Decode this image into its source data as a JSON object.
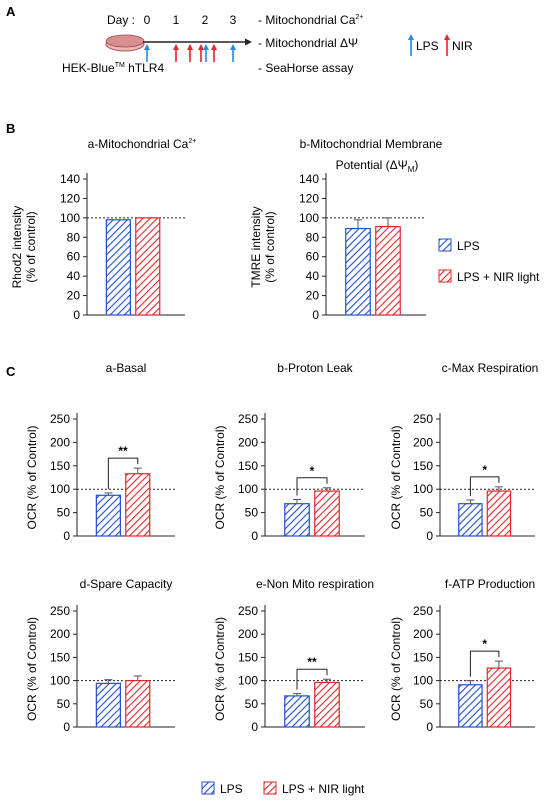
{
  "panel_labels": {
    "a": "A",
    "b": "B",
    "c": "C"
  },
  "timeline": {
    "day_label": "Day :",
    "days": [
      "0",
      "1",
      "2",
      "3"
    ],
    "cell_line": {
      "prefix": "HEK-Blue",
      "superscript": "TM",
      "suffix": " hTLR4"
    },
    "assays": [
      {
        "text": "- Mitochondrial Ca",
        "sup": "2+",
        "sub": ""
      },
      {
        "text": "- Mitochondrial ΔΨ",
        "sup": "",
        "sub": ""
      },
      {
        "text": "- SeaHorse assay",
        "sup": "",
        "sub": ""
      }
    ],
    "legend": {
      "lps": "LPS",
      "nir": "NIR"
    },
    "colors": {
      "lps": "#2a8ad6",
      "nir": "#e0272a"
    }
  },
  "legend": {
    "lps": "LPS",
    "lps_nir": "LPS + NIR light"
  },
  "colors": {
    "blue": "#1f4fcf",
    "red": "#e0272a"
  },
  "chart_data": [
    {
      "id": "B-a",
      "type": "bar",
      "title": "a-Mitochondrial Ca",
      "title_sup": "2+",
      "ylabel": "Rhod2 intensity\n(% of control)",
      "ylim": [
        0,
        140
      ],
      "yticks": [
        0,
        20,
        40,
        60,
        80,
        100,
        120,
        140
      ],
      "reference_line": 100,
      "series": [
        {
          "name": "LPS",
          "values": [
            98
          ],
          "err": [
            0
          ]
        },
        {
          "name": "LPS + NIR light",
          "values": [
            100
          ],
          "err": [
            0
          ]
        }
      ]
    },
    {
      "id": "B-b",
      "type": "bar",
      "title": "b-Mitochondrial Membrane",
      "title2": "Potential (ΔΨ",
      "title2_sub": "M",
      "title2_end": ")",
      "ylabel": "TMRE intensity\n(% of control)",
      "ylim": [
        0,
        140
      ],
      "yticks": [
        0,
        20,
        40,
        60,
        80,
        100,
        120,
        140
      ],
      "reference_line": 100,
      "series": [
        {
          "name": "LPS",
          "values": [
            89
          ],
          "err": [
            9
          ]
        },
        {
          "name": "LPS + NIR light",
          "values": [
            91
          ],
          "err": [
            9
          ]
        }
      ]
    },
    {
      "id": "C-a",
      "type": "bar",
      "title": "a-Basal",
      "ylabel": "OCR (% of Control)",
      "ylim": [
        0,
        250
      ],
      "yticks": [
        0,
        50,
        100,
        150,
        200,
        250
      ],
      "reference_line": 100,
      "significance": "**",
      "series": [
        {
          "name": "LPS",
          "values": [
            87
          ],
          "err": [
            5
          ]
        },
        {
          "name": "LPS + NIR light",
          "values": [
            133
          ],
          "err": [
            12
          ]
        }
      ]
    },
    {
      "id": "C-b",
      "type": "bar",
      "title": "b-Proton Leak",
      "ylabel": "OCR (% of Control)",
      "ylim": [
        0,
        250
      ],
      "yticks": [
        0,
        50,
        100,
        150,
        200,
        250
      ],
      "reference_line": 100,
      "significance": "*",
      "series": [
        {
          "name": "LPS",
          "values": [
            69
          ],
          "err": [
            9
          ]
        },
        {
          "name": "LPS + NIR light",
          "values": [
            96
          ],
          "err": [
            7
          ]
        }
      ]
    },
    {
      "id": "C-c",
      "type": "bar",
      "title": "c-Max Respiration",
      "ylabel": "OCR (% of Control)",
      "ylim": [
        0,
        250
      ],
      "yticks": [
        0,
        50,
        100,
        150,
        200,
        250
      ],
      "reference_line": 100,
      "significance": "*",
      "series": [
        {
          "name": "LPS",
          "values": [
            69
          ],
          "err": [
            8
          ]
        },
        {
          "name": "LPS + NIR light",
          "values": [
            96
          ],
          "err": [
            9
          ]
        }
      ]
    },
    {
      "id": "C-d",
      "type": "bar",
      "title": "d-Spare Capacity",
      "ylabel": "OCR (% of Control)",
      "ylim": [
        0,
        250
      ],
      "yticks": [
        0,
        50,
        100,
        150,
        200,
        250
      ],
      "reference_line": 100,
      "series": [
        {
          "name": "LPS",
          "values": [
            94
          ],
          "err": [
            8
          ]
        },
        {
          "name": "LPS + NIR light",
          "values": [
            100
          ],
          "err": [
            10
          ]
        }
      ]
    },
    {
      "id": "C-e",
      "type": "bar",
      "title": "e-Non Mito respiration",
      "ylabel": "OCR (% of Control)",
      "ylim": [
        0,
        250
      ],
      "yticks": [
        0,
        50,
        100,
        150,
        200,
        250
      ],
      "reference_line": 100,
      "significance": "**",
      "series": [
        {
          "name": "LPS",
          "values": [
            67
          ],
          "err": [
            5
          ]
        },
        {
          "name": "LPS + NIR light",
          "values": [
            96
          ],
          "err": [
            7
          ]
        }
      ]
    },
    {
      "id": "C-f",
      "type": "bar",
      "title": "f-ATP Production",
      "ylabel": "OCR (% of Control)",
      "ylim": [
        0,
        250
      ],
      "yticks": [
        0,
        50,
        100,
        150,
        200,
        250
      ],
      "reference_line": 100,
      "significance": "*",
      "series": [
        {
          "name": "LPS",
          "values": [
            91
          ],
          "err": [
            9
          ]
        },
        {
          "name": "LPS + NIR light",
          "values": [
            127
          ],
          "err": [
            15
          ]
        }
      ]
    }
  ]
}
